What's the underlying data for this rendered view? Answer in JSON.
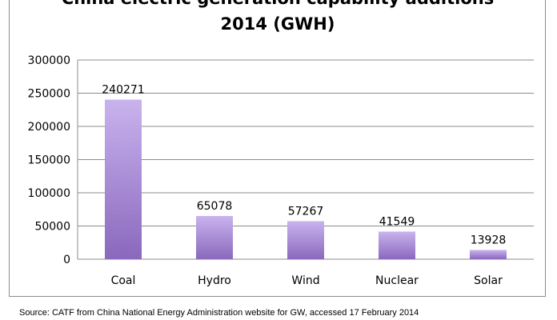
{
  "chart_data": {
    "type": "bar",
    "title_line1": "China electric generation capability additions",
    "title_line2": "2014 (GWH)",
    "categories": [
      "Coal",
      "Hydro",
      "Wind",
      "Nuclear",
      "Solar"
    ],
    "values": [
      240271,
      65078,
      57267,
      41549,
      13928
    ],
    "data_labels": [
      "240271",
      "65078",
      "57267",
      "41549",
      "13928"
    ],
    "ylim": [
      0,
      300000
    ],
    "yticks": [
      0,
      50000,
      100000,
      150000,
      200000,
      250000,
      300000
    ],
    "ytick_labels": [
      "0",
      "50000",
      "100000",
      "150000",
      "200000",
      "250000",
      "300000"
    ],
    "grid": true,
    "legend": "none",
    "colors": {
      "bar_top": "#c9b3ee",
      "bar_bottom": "#8a68bd",
      "gridline": "#8c8c8c"
    }
  },
  "source_note": "Source: CATF from China National Energy Administration website for GW, accessed 17 February 2014"
}
